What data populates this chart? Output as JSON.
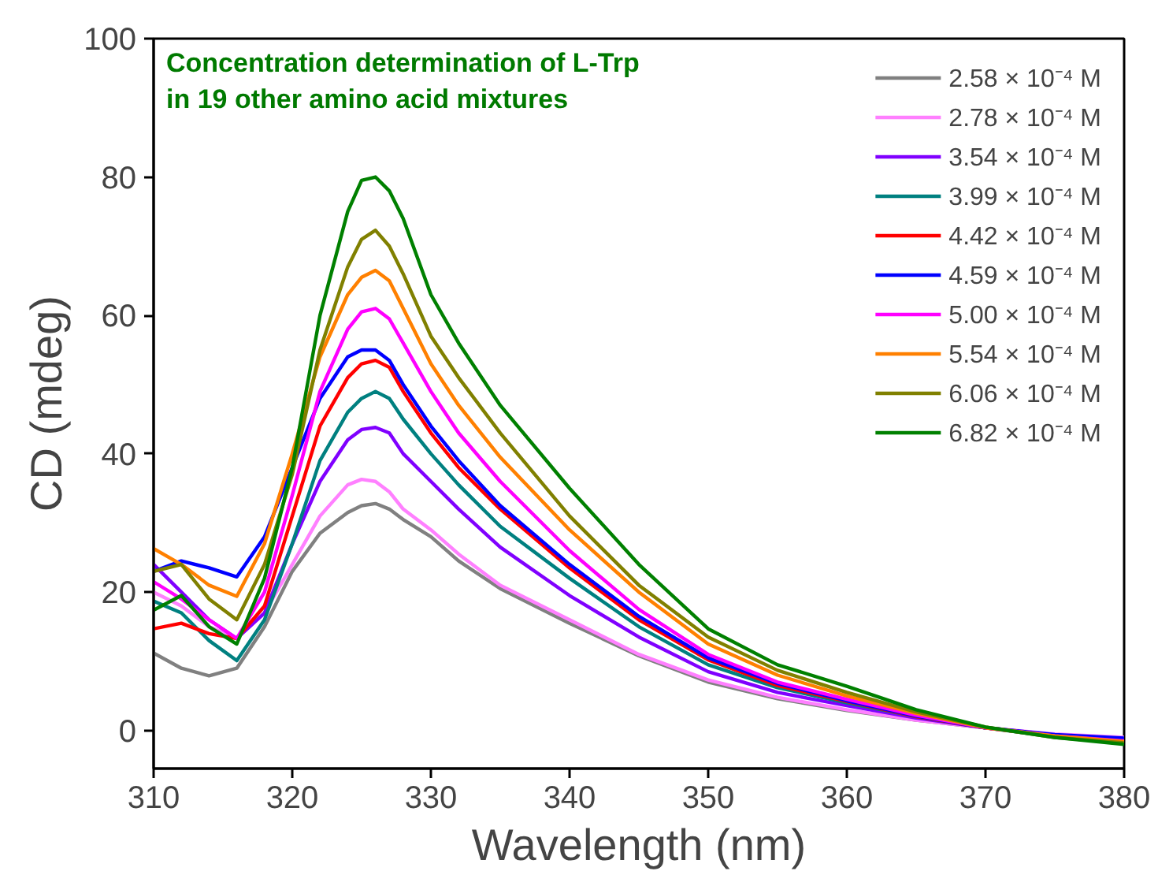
{
  "chart_data": {
    "type": "line",
    "title": "Concentration determination of L-Trp\n in 19 other amino acid mixtures",
    "xlabel": "Wavelength (nm)",
    "ylabel": "CD (mdeg)",
    "x": [
      310,
      312,
      314,
      316,
      318,
      320,
      322,
      324,
      325,
      326,
      327,
      328,
      330,
      332,
      335,
      340,
      345,
      350,
      355,
      360,
      365,
      370,
      375,
      380
    ],
    "xlim": [
      310,
      380
    ],
    "ylim": [
      -5.5,
      100
    ],
    "xticks": [
      310,
      320,
      330,
      340,
      350,
      360,
      370,
      380
    ],
    "yticks": [
      0,
      20,
      40,
      60,
      80,
      100
    ],
    "grid": false,
    "legend": "top right",
    "marker": "none",
    "line_style": "solid",
    "series": [
      {
        "name": "2.58 × 10⁻⁴ M",
        "color": "#808080",
        "values": [
          11.2,
          9,
          7.9,
          9,
          15,
          23,
          28.5,
          31.5,
          32.5,
          32.8,
          32,
          30.5,
          28,
          24.5,
          20.5,
          15.5,
          10.8,
          7,
          4.6,
          2.9,
          1.5,
          0.4,
          -0.6,
          -1.2
        ]
      },
      {
        "name": "2.78 × 10⁻⁴ M",
        "color": "#ff80ff",
        "values": [
          20,
          18,
          15,
          13.3,
          17,
          24,
          31,
          35.5,
          36.3,
          36,
          34.5,
          32,
          29,
          25.5,
          21,
          16,
          11,
          7.3,
          4.8,
          3,
          1.5,
          0.4,
          -0.5,
          -1
        ]
      },
      {
        "name": "3.54 × 10⁻⁴ M",
        "color": "#8000ff",
        "values": [
          24,
          20,
          16,
          13.3,
          17,
          27,
          36,
          42,
          43.5,
          43.8,
          43,
          40,
          36,
          32,
          26.5,
          19.5,
          13.5,
          8.5,
          5.5,
          3.6,
          1.8,
          0.4,
          -0.7,
          -1.3
        ]
      },
      {
        "name": "3.99 × 10⁻⁴ M",
        "color": "#008080",
        "values": [
          18.7,
          17,
          13,
          10.1,
          16,
          27,
          39,
          46,
          48,
          49,
          48,
          45,
          40,
          35.5,
          29.5,
          22,
          15,
          9.5,
          6.2,
          4,
          2,
          0.4,
          -0.9,
          -1.7
        ]
      },
      {
        "name": "4.42 × 10⁻⁴ M",
        "color": "#ff0000",
        "values": [
          14.7,
          15.5,
          14,
          13.3,
          18,
          31,
          44,
          51,
          53,
          53.5,
          52.5,
          49,
          43,
          38,
          32,
          23.5,
          16,
          10.2,
          6.5,
          4.2,
          2,
          0.4,
          -0.8,
          -1.4
        ]
      },
      {
        "name": "4.59 × 10⁻⁴ M",
        "color": "#0000ff",
        "values": [
          23,
          24.5,
          23.5,
          22.2,
          28,
          38,
          48,
          54,
          55,
          55,
          53.5,
          50,
          44,
          39,
          32.5,
          24,
          16.5,
          10.5,
          6.8,
          4.3,
          2.1,
          0.4,
          -0.6,
          -1.1
        ]
      },
      {
        "name": "5.00 × 10⁻⁴ M",
        "color": "#ff00ff",
        "values": [
          21.5,
          19,
          16,
          13.3,
          20,
          34,
          49,
          58,
          60.5,
          61,
          59.5,
          56,
          49,
          43,
          36,
          26,
          17.5,
          11,
          7,
          4.5,
          2.2,
          0.4,
          -0.8,
          -1.5
        ]
      },
      {
        "name": "5.54 × 10⁻⁴ M",
        "color": "#ff8000",
        "values": [
          26.3,
          24,
          21,
          19.4,
          27,
          40,
          54,
          63,
          65.5,
          66.5,
          65,
          61,
          53,
          47,
          39.5,
          29,
          20,
          12.5,
          8,
          5,
          2.5,
          0.4,
          -0.8,
          -1.6
        ]
      },
      {
        "name": "6.06 × 10⁻⁴ M",
        "color": "#808000",
        "values": [
          23,
          24,
          19,
          16,
          24,
          37,
          55,
          67,
          71,
          72.3,
          70,
          66,
          57,
          51,
          43,
          31,
          21,
          13.5,
          8.7,
          5.5,
          2.7,
          0.5,
          -1,
          -1.8
        ]
      },
      {
        "name": "6.82 × 10⁻⁴ M",
        "color": "#008000",
        "values": [
          17.4,
          19.5,
          15,
          12.5,
          22,
          38,
          60,
          75,
          79.5,
          80,
          78,
          74,
          63,
          56,
          47,
          35,
          24,
          14.7,
          9.5,
          6.4,
          3,
          0.5,
          -1,
          -2
        ]
      }
    ]
  }
}
